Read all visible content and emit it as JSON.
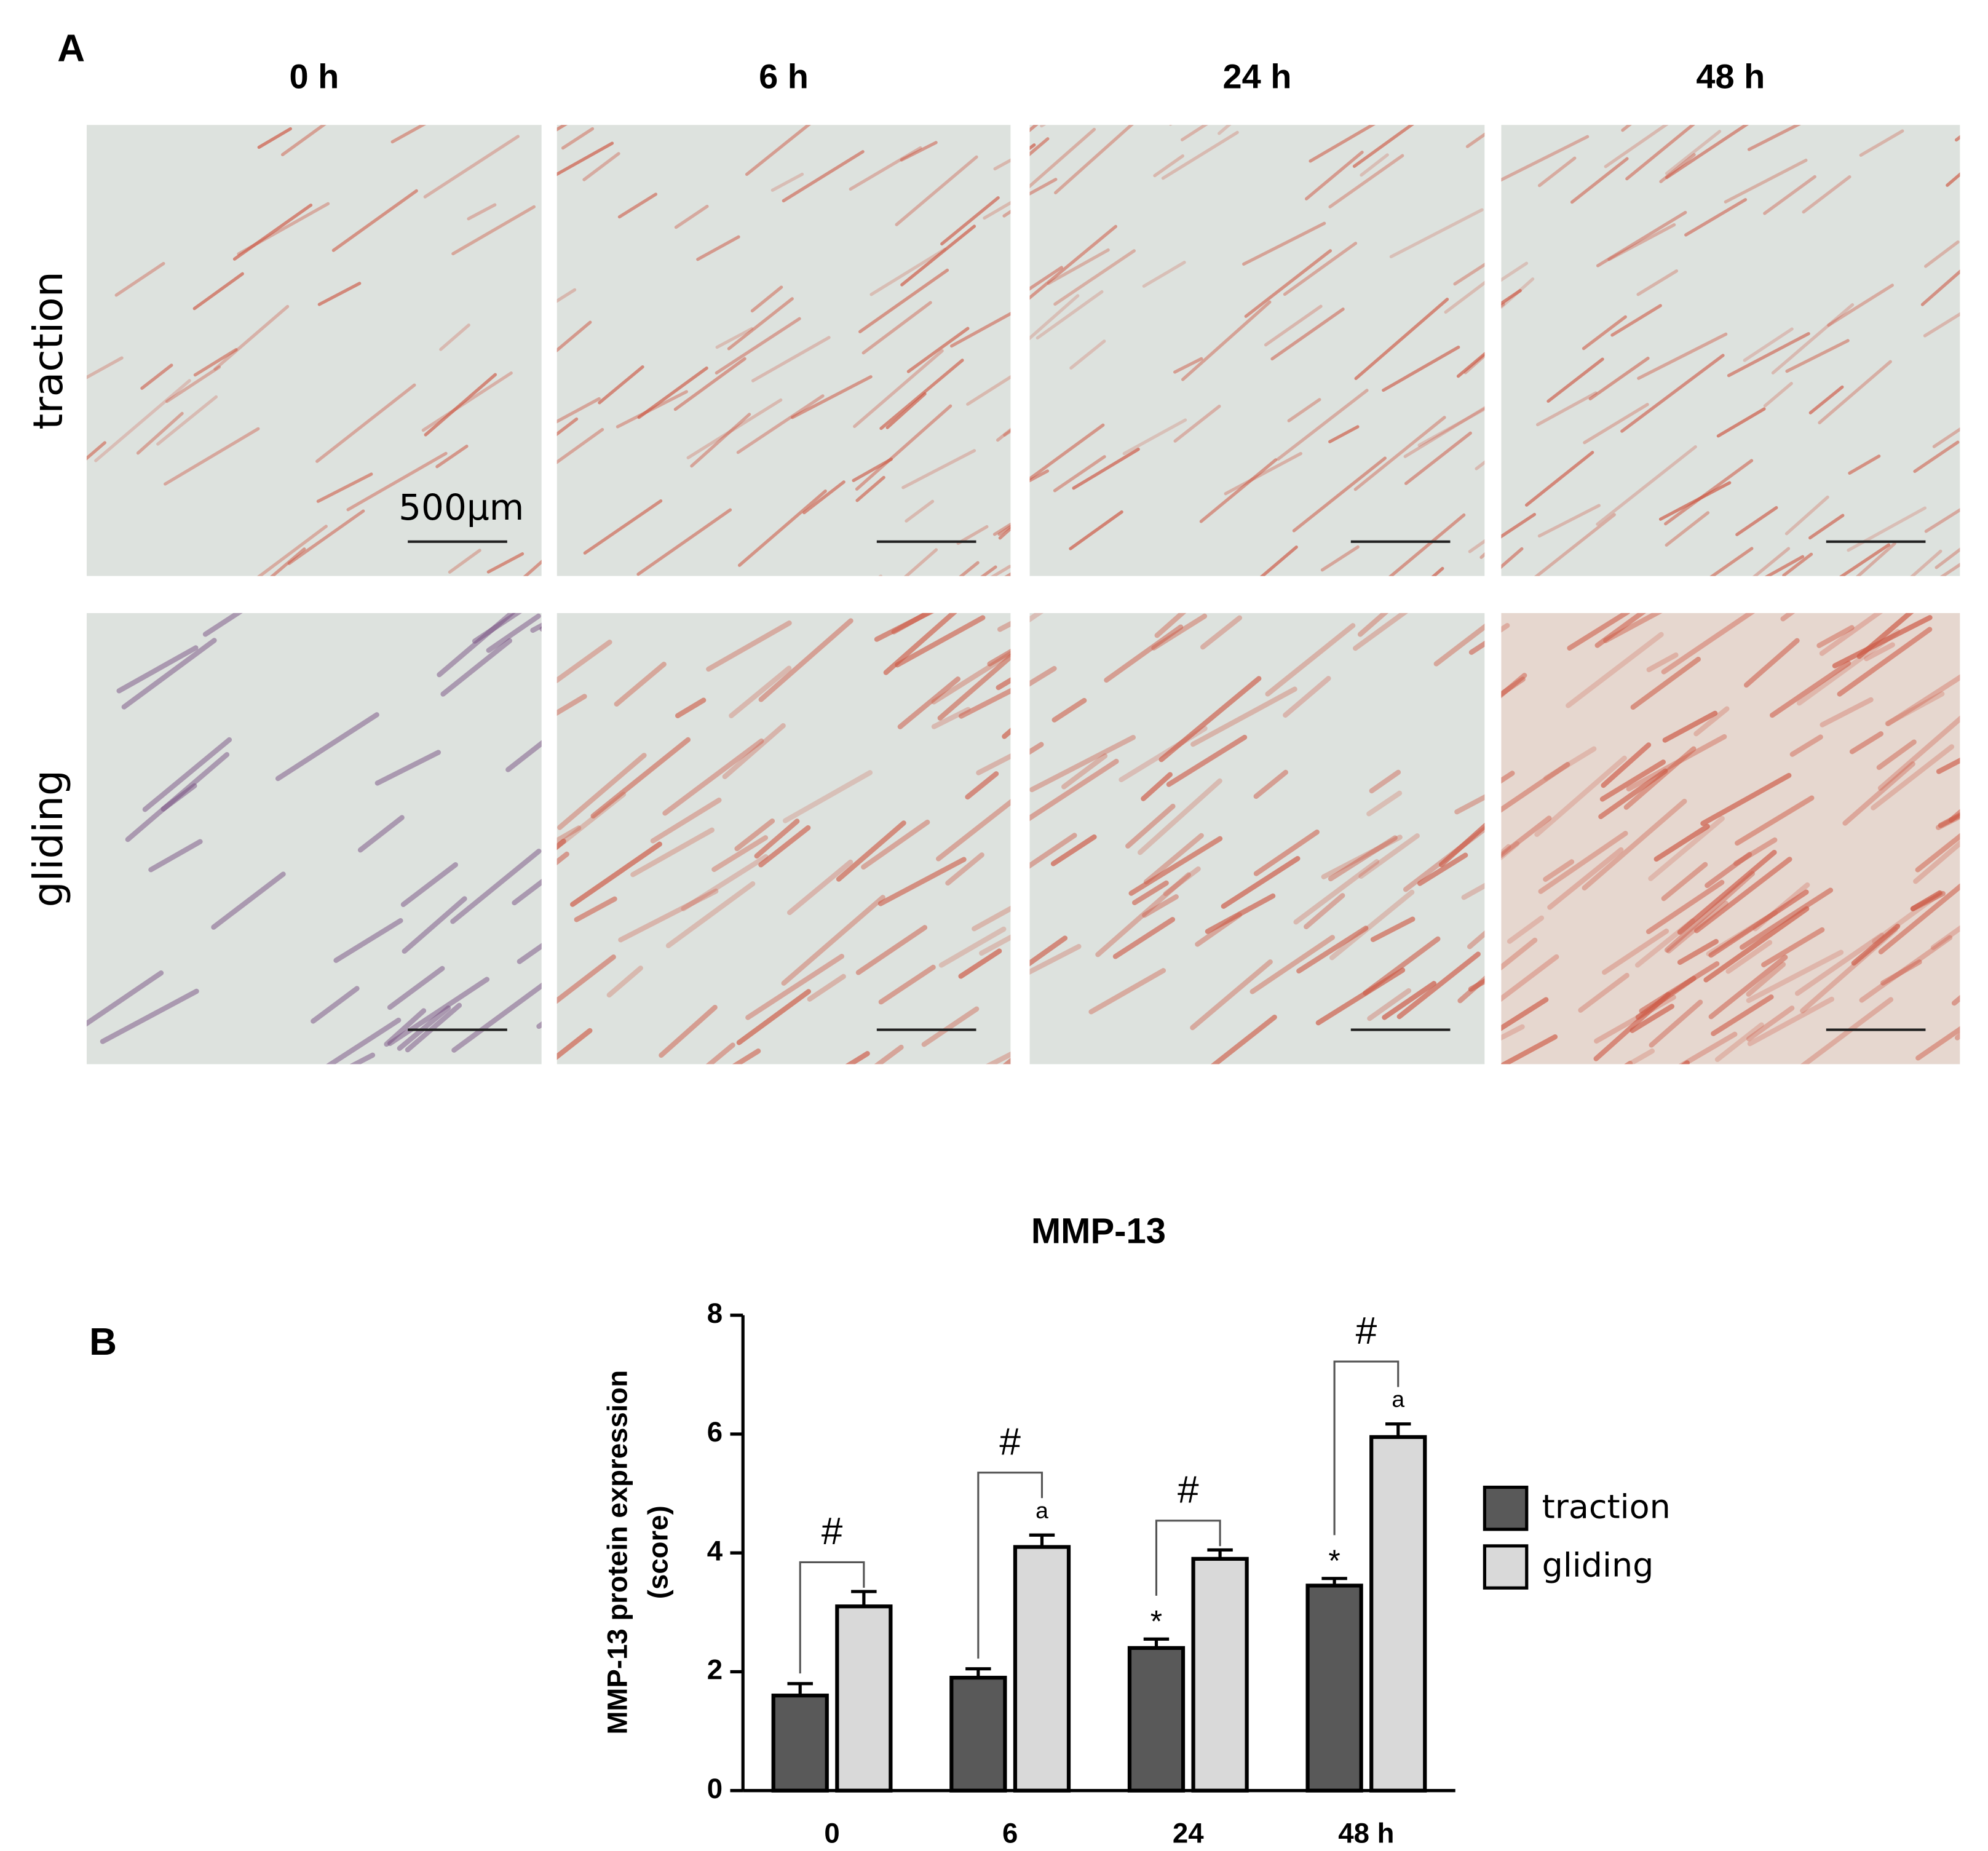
{
  "figure": {
    "panel_a": {
      "label": "A",
      "columns": [
        "0 h",
        "6 h",
        "24 h",
        "48 h"
      ],
      "rows": [
        "traction",
        "gliding"
      ],
      "scale_bar": "500μm"
    },
    "panel_b_label": "B"
  },
  "chart_data": {
    "type": "bar",
    "title": "MMP-13",
    "y_label": [
      "MMP-13 protein expression",
      "(score)"
    ],
    "categories": [
      "0",
      "6",
      "24",
      "48 h"
    ],
    "series": [
      {
        "name": "traction",
        "color": "#595959",
        "values": [
          1.6,
          1.9,
          2.4,
          3.45
        ],
        "error": [
          0.2,
          0.15,
          0.15,
          0.12
        ],
        "annotations": [
          null,
          null,
          "*",
          "*"
        ]
      },
      {
        "name": "gliding",
        "color": "#d9d9d9",
        "values": [
          3.1,
          4.1,
          3.9,
          5.95
        ],
        "error": [
          0.25,
          0.2,
          0.15,
          0.22
        ],
        "annotations": [
          null,
          "a",
          null,
          "a"
        ]
      }
    ],
    "brackets": [
      "#",
      "#",
      "#",
      "#"
    ],
    "ylim": [
      0,
      8
    ],
    "yticks": [
      0,
      2,
      4,
      6,
      8
    ],
    "legend": "right"
  }
}
